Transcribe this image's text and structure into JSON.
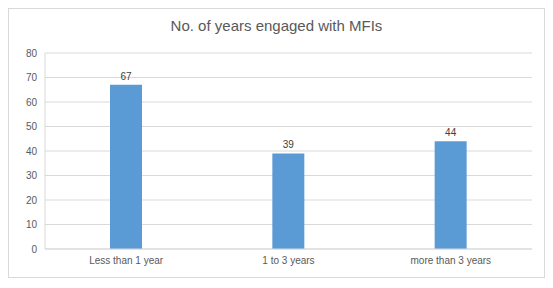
{
  "chart_data": {
    "type": "bar",
    "title": "No. of years engaged with MFIs",
    "categories": [
      "Less than 1 year",
      "1 to 3 years",
      "more than 3 years"
    ],
    "values": [
      67,
      39,
      44
    ],
    "color": "#5b9bd5",
    "ylim": [
      0,
      80
    ],
    "yticks": [
      0,
      10,
      20,
      30,
      40,
      50,
      60,
      70,
      80
    ],
    "grid": true,
    "data_labels": true
  }
}
